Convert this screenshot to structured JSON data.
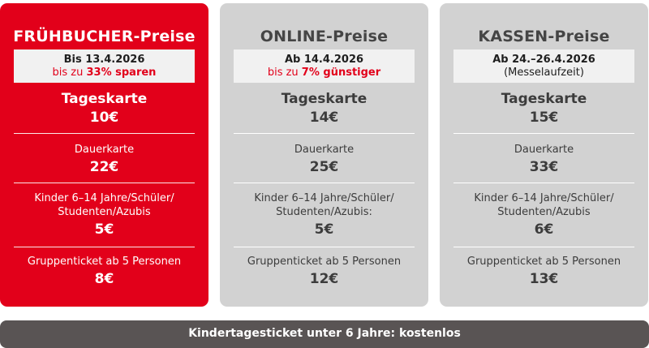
{
  "cards": [
    {
      "title": "FRÜHBUCHER-Preise",
      "date_line1": "Bis 13.4.2026",
      "date_pre": "bis zu ",
      "date_bold": "33% sparen",
      "tageskarte_label": "Tageskarte",
      "tageskarte_price": "10€",
      "dauerkarte_label": "Dauerkarte",
      "dauerkarte_price": "22€",
      "kinder_line1": "Kinder 6–14 Jahre/Schüler/",
      "kinder_line2": "Studenten/Azubis",
      "kinder_price": "5€",
      "gruppe_label": "Gruppenticket ab 5 Personen",
      "gruppe_price": "8€"
    },
    {
      "title": "ONLINE-Preise",
      "date_line1": "Ab 14.4.2026",
      "date_pre": "bis zu ",
      "date_bold": "7% günstiger",
      "tageskarte_label": "Tageskarte",
      "tageskarte_price": "14€",
      "dauerkarte_label": "Dauerkarte",
      "dauerkarte_price": "25€",
      "kinder_line1": "Kinder 6–14 Jahre/Schüler/",
      "kinder_line2": "Studenten/Azubis:",
      "kinder_price": "5€",
      "gruppe_label": "Gruppenticket ab 5 Personen",
      "gruppe_price": "12€"
    },
    {
      "title": "KASSEN-Preise",
      "date_line1": "Ab 24.–26.4.2026",
      "date_line2": "(Messelaufzeit)",
      "tageskarte_label": "Tageskarte",
      "tageskarte_price": "15€",
      "dauerkarte_label": "Dauerkarte",
      "dauerkarte_price": "33€",
      "kinder_line1": "Kinder 6–14 Jahre/Schüler/",
      "kinder_line2": "Studenten/Azubis",
      "kinder_price": "6€",
      "gruppe_label": "Gruppenticket ab 5 Personen",
      "gruppe_price": "13€"
    }
  ],
  "footer": {
    "text": "Kindertagesticket unter 6 Jahre: kostenlos"
  },
  "colors": {
    "accent_red": "#e2001a",
    "card_grey": "#d2d2d2",
    "footer_bg": "#595454"
  }
}
